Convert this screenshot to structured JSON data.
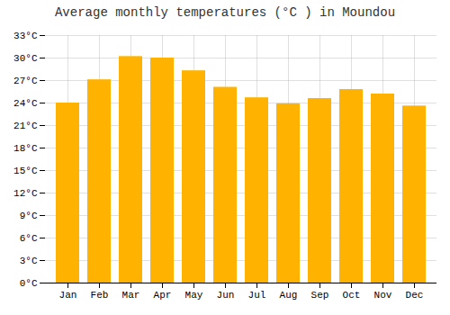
{
  "chart_data": {
    "type": "bar",
    "title": "Average monthly temperatures (°C ) in Moundou",
    "categories": [
      "Jan",
      "Feb",
      "Mar",
      "Apr",
      "May",
      "Jun",
      "Jul",
      "Aug",
      "Sep",
      "Oct",
      "Nov",
      "Dec"
    ],
    "values": [
      24.0,
      27.1,
      30.2,
      30.0,
      28.3,
      26.1,
      24.7,
      23.9,
      24.6,
      25.8,
      25.2,
      23.6
    ],
    "color": "#FFB300",
    "ylim": [
      0,
      33
    ],
    "yticks": [
      {
        "value": 0,
        "label": "0°C"
      },
      {
        "value": 3,
        "label": "3°C"
      },
      {
        "value": 6,
        "label": "6°C"
      },
      {
        "value": 9,
        "label": "9°C"
      },
      {
        "value": 12,
        "label": "12°C"
      },
      {
        "value": 15,
        "label": "15°C"
      },
      {
        "value": 18,
        "label": "18°C"
      },
      {
        "value": 21,
        "label": "21°C"
      },
      {
        "value": 24,
        "label": "24°C"
      },
      {
        "value": 27,
        "label": "27°C"
      },
      {
        "value": 30,
        "label": "30°C"
      },
      {
        "value": 33,
        "label": "33°C"
      }
    ],
    "grid": true
  }
}
